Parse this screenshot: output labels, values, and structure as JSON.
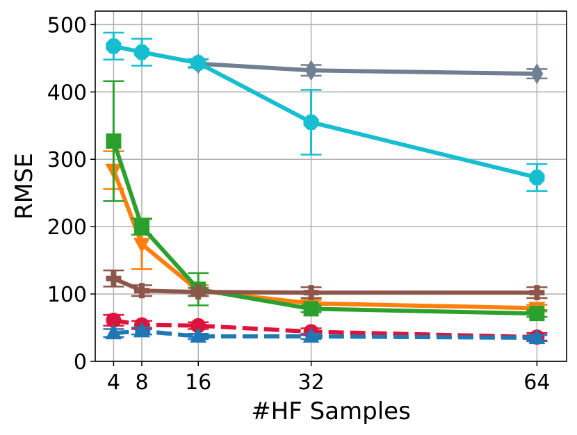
{
  "chart_data": {
    "type": "line",
    "xlabel": "#HF Samples",
    "ylabel": "RMSE",
    "xlim": [
      1.4,
      68.2
    ],
    "ylim": [
      0,
      520
    ],
    "x_ticks": [
      4,
      8,
      16,
      32,
      64
    ],
    "y_ticks": [
      0,
      100,
      200,
      300,
      400,
      500
    ],
    "grid": true,
    "series": [
      {
        "color": "#708090",
        "marker": "diamond",
        "dash": "solid",
        "x": [
          16,
          32,
          64
        ],
        "y": [
          442,
          432,
          427
        ],
        "err": [
          6,
          8,
          7
        ]
      },
      {
        "color": "#17becf",
        "marker": "octagon",
        "dash": "solid",
        "x": [
          4,
          8,
          16,
          32,
          64
        ],
        "y": [
          468,
          459,
          443,
          355,
          273
        ],
        "err": [
          20,
          20,
          6,
          48,
          20
        ]
      },
      {
        "color": "#ff7f0e",
        "marker": "triangle-down",
        "dash": "solid",
        "x": [
          4,
          8,
          16,
          32,
          64
        ],
        "y": [
          284,
          174,
          105,
          86,
          79
        ],
        "err": [
          28,
          37,
          8,
          5,
          5
        ]
      },
      {
        "color": "#2ca02c",
        "marker": "square",
        "dash": "solid",
        "x": [
          4,
          8,
          16,
          32,
          64
        ],
        "y": [
          327,
          200,
          107,
          78,
          71
        ],
        "err": [
          89,
          12,
          24,
          5,
          5
        ]
      },
      {
        "color": "#8c564b",
        "marker": "plus",
        "dash": "solid",
        "x": [
          4,
          8,
          16,
          32,
          64
        ],
        "y": [
          123,
          105,
          103,
          102,
          102
        ],
        "err": [
          12,
          8,
          6,
          8,
          8
        ]
      },
      {
        "color": "#dc143c",
        "marker": "circle",
        "dash": "dashed",
        "x": [
          4,
          8,
          16,
          32,
          64
        ],
        "y": [
          61,
          54,
          53,
          44,
          36
        ],
        "err": [
          8,
          6,
          5,
          5,
          6
        ]
      },
      {
        "color": "#1f77b4",
        "marker": "triangle-up",
        "dash": "dashed",
        "x": [
          4,
          8,
          16,
          32,
          64
        ],
        "y": [
          42,
          45,
          37,
          37,
          35
        ],
        "err": [
          6,
          5,
          4,
          4,
          4
        ]
      }
    ]
  }
}
